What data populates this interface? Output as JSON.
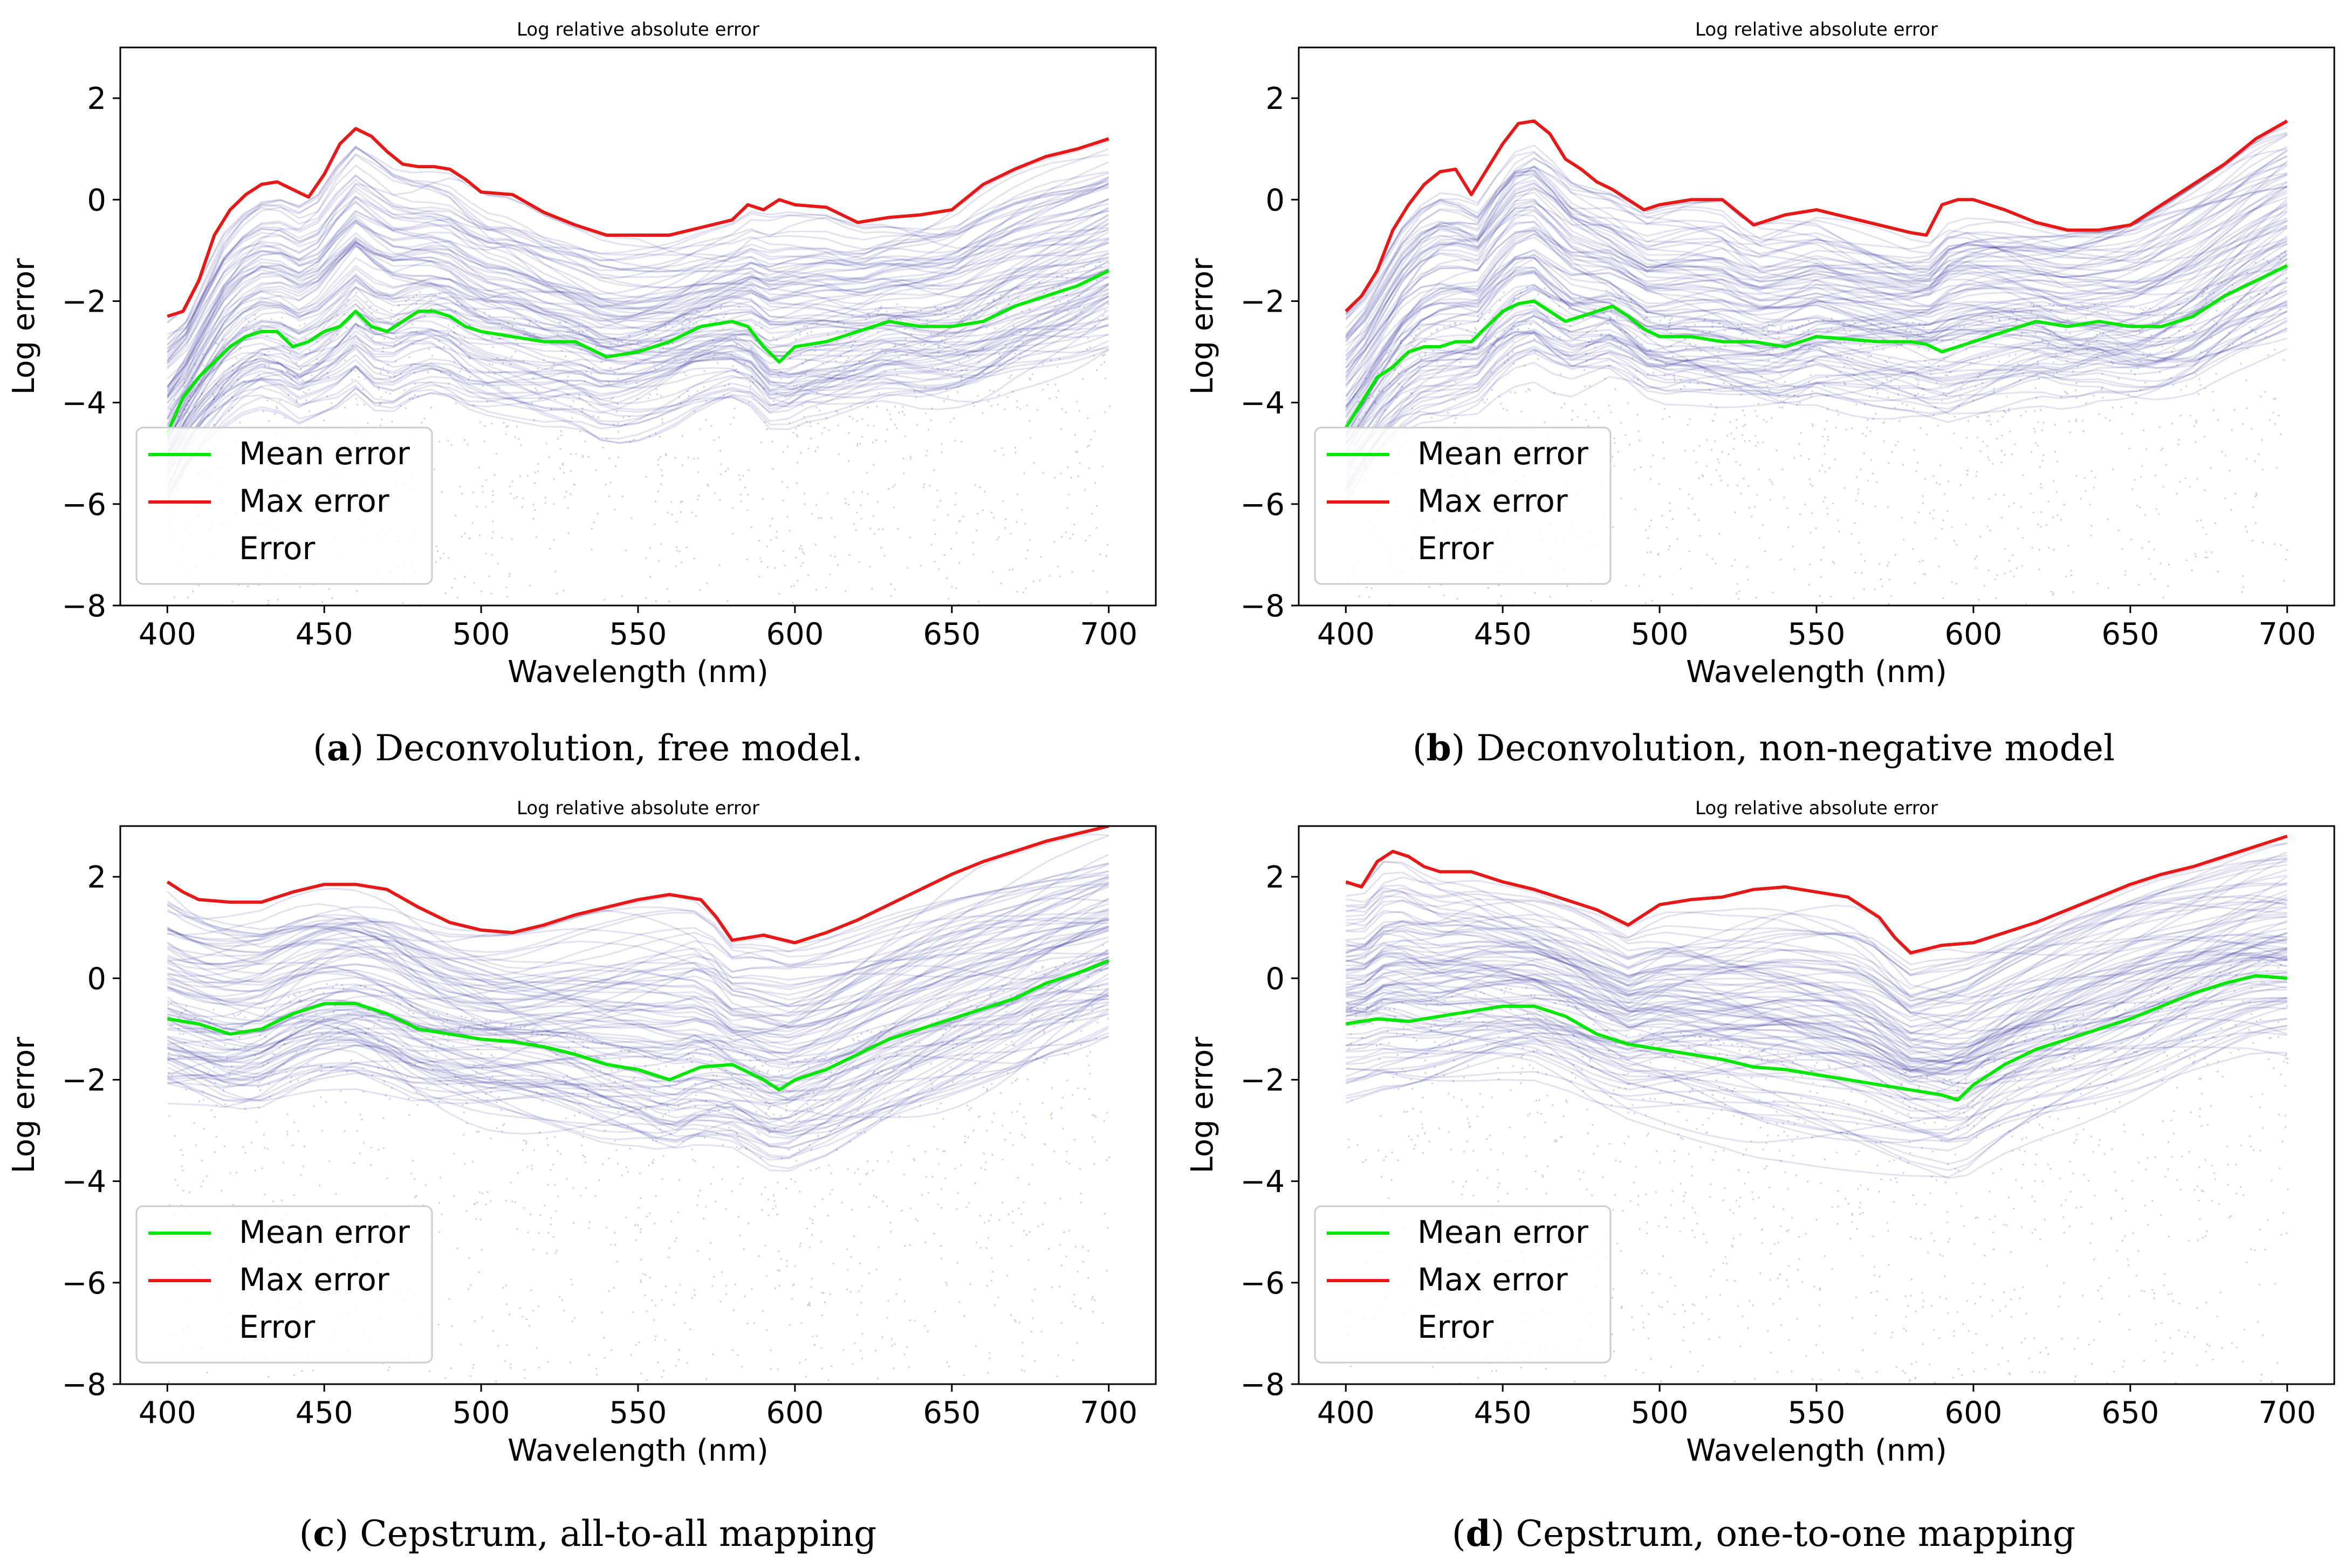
{
  "panels": [
    {
      "caption_letter": "a",
      "caption_text": "Deconvolution, free model.",
      "chart_data": {
        "type": "line",
        "title": "Log relative absolute error",
        "xlabel": "Wavelength (nm)",
        "ylabel": "Log error",
        "xlim": [
          385,
          715
        ],
        "ylim": [
          -8,
          3
        ],
        "xticks": [
          400,
          450,
          500,
          550,
          600,
          650,
          700
        ],
        "yticks": [
          -8,
          -6,
          -4,
          -2,
          0,
          2
        ],
        "legend_position": "lower-left",
        "series": [
          {
            "name": "Mean error",
            "color": "#00e600",
            "x": [
              400,
              405,
              410,
              415,
              420,
              425,
              430,
              435,
              440,
              445,
              450,
              455,
              460,
              465,
              470,
              475,
              480,
              485,
              490,
              495,
              500,
              510,
              520,
              530,
              540,
              550,
              560,
              570,
              580,
              585,
              590,
              595,
              600,
              610,
              620,
              630,
              640,
              650,
              660,
              670,
              680,
              690,
              700
            ],
            "y": [
              -4.6,
              -3.9,
              -3.5,
              -3.2,
              -2.9,
              -2.7,
              -2.6,
              -2.6,
              -2.9,
              -2.8,
              -2.6,
              -2.5,
              -2.2,
              -2.5,
              -2.6,
              -2.4,
              -2.2,
              -2.2,
              -2.3,
              -2.5,
              -2.6,
              -2.7,
              -2.8,
              -2.8,
              -3.1,
              -3.0,
              -2.8,
              -2.5,
              -2.4,
              -2.5,
              -2.9,
              -3.2,
              -2.9,
              -2.8,
              -2.6,
              -2.4,
              -2.5,
              -2.5,
              -2.4,
              -2.1,
              -1.9,
              -1.7,
              -1.4
            ]
          },
          {
            "name": "Max error",
            "color": "#e61919",
            "x": [
              400,
              405,
              410,
              415,
              420,
              425,
              430,
              435,
              440,
              445,
              450,
              455,
              460,
              465,
              470,
              475,
              480,
              485,
              490,
              495,
              500,
              510,
              520,
              530,
              540,
              550,
              560,
              570,
              580,
              585,
              590,
              595,
              600,
              610,
              620,
              630,
              640,
              650,
              660,
              670,
              680,
              690,
              700
            ],
            "y": [
              -2.3,
              -2.2,
              -1.6,
              -0.7,
              -0.2,
              0.1,
              0.3,
              0.35,
              0.2,
              0.05,
              0.5,
              1.1,
              1.4,
              1.25,
              0.95,
              0.7,
              0.65,
              0.65,
              0.6,
              0.4,
              0.15,
              0.1,
              -0.25,
              -0.5,
              -0.7,
              -0.7,
              -0.7,
              -0.55,
              -0.4,
              -0.1,
              -0.2,
              0.0,
              -0.1,
              -0.15,
              -0.45,
              -0.35,
              -0.3,
              -0.2,
              0.3,
              0.6,
              0.85,
              1.0,
              1.2
            ]
          },
          {
            "name": "Error",
            "color": "#1a1a8c",
            "style": "faint-dots"
          }
        ]
      }
    },
    {
      "caption_letter": "b",
      "caption_text": "Deconvolution, non-negative model",
      "chart_data": {
        "type": "line",
        "title": "Log relative absolute error",
        "xlabel": "Wavelength (nm)",
        "ylabel": "Log error",
        "xlim": [
          385,
          715
        ],
        "ylim": [
          -8,
          3
        ],
        "xticks": [
          400,
          450,
          500,
          550,
          600,
          650,
          700
        ],
        "yticks": [
          -8,
          -6,
          -4,
          -2,
          0,
          2
        ],
        "legend_position": "lower-left",
        "series": [
          {
            "name": "Mean error",
            "color": "#00e600",
            "x": [
              400,
              405,
              410,
              415,
              420,
              425,
              430,
              435,
              440,
              445,
              450,
              455,
              460,
              465,
              470,
              475,
              480,
              485,
              490,
              495,
              500,
              510,
              520,
              530,
              540,
              550,
              560,
              570,
              580,
              585,
              590,
              595,
              600,
              610,
              620,
              630,
              640,
              650,
              660,
              670,
              680,
              690,
              700
            ],
            "y": [
              -4.5,
              -4.0,
              -3.5,
              -3.3,
              -3.0,
              -2.9,
              -2.9,
              -2.8,
              -2.8,
              -2.5,
              -2.2,
              -2.05,
              -2.0,
              -2.2,
              -2.4,
              -2.3,
              -2.2,
              -2.1,
              -2.3,
              -2.55,
              -2.7,
              -2.7,
              -2.8,
              -2.8,
              -2.9,
              -2.7,
              -2.75,
              -2.8,
              -2.8,
              -2.85,
              -3.0,
              -2.9,
              -2.8,
              -2.6,
              -2.4,
              -2.5,
              -2.4,
              -2.5,
              -2.5,
              -2.3,
              -1.9,
              -1.6,
              -1.3
            ]
          },
          {
            "name": "Max error",
            "color": "#e61919",
            "x": [
              400,
              405,
              410,
              415,
              420,
              425,
              430,
              435,
              440,
              445,
              450,
              455,
              460,
              465,
              470,
              475,
              480,
              485,
              490,
              495,
              500,
              510,
              520,
              530,
              540,
              550,
              560,
              570,
              580,
              585,
              590,
              595,
              600,
              610,
              620,
              630,
              640,
              650,
              660,
              670,
              680,
              690,
              700
            ],
            "y": [
              -2.2,
              -1.9,
              -1.4,
              -0.6,
              -0.1,
              0.3,
              0.55,
              0.6,
              0.1,
              0.6,
              1.1,
              1.5,
              1.55,
              1.3,
              0.8,
              0.6,
              0.35,
              0.2,
              0.0,
              -0.2,
              -0.1,
              0.0,
              0.0,
              -0.5,
              -0.3,
              -0.2,
              -0.35,
              -0.5,
              -0.65,
              -0.7,
              -0.1,
              0.0,
              0.0,
              -0.2,
              -0.45,
              -0.6,
              -0.6,
              -0.5,
              -0.1,
              0.3,
              0.7,
              1.2,
              1.55
            ]
          },
          {
            "name": "Error",
            "color": "#1a1a8c",
            "style": "faint-dots"
          }
        ]
      }
    },
    {
      "caption_letter": "c",
      "caption_text": "Cepstrum, all-to-all mapping",
      "chart_data": {
        "type": "line",
        "title": "Log relative absolute error",
        "xlabel": "Wavelength (nm)",
        "ylabel": "Log error",
        "xlim": [
          385,
          715
        ],
        "ylim": [
          -8,
          3
        ],
        "xticks": [
          400,
          450,
          500,
          550,
          600,
          650,
          700
        ],
        "yticks": [
          -8,
          -6,
          -4,
          -2,
          0,
          2
        ],
        "legend_position": "lower-left",
        "series": [
          {
            "name": "Mean error",
            "color": "#00e600",
            "x": [
              400,
              410,
              420,
              430,
              440,
              450,
              460,
              470,
              480,
              490,
              500,
              510,
              520,
              530,
              540,
              550,
              560,
              570,
              580,
              590,
              595,
              600,
              610,
              620,
              630,
              640,
              650,
              660,
              670,
              680,
              690,
              700
            ],
            "y": [
              -0.8,
              -0.9,
              -1.1,
              -1.0,
              -0.7,
              -0.5,
              -0.5,
              -0.7,
              -1.0,
              -1.1,
              -1.2,
              -1.25,
              -1.35,
              -1.5,
              -1.7,
              -1.8,
              -2.0,
              -1.75,
              -1.7,
              -2.0,
              -2.2,
              -2.0,
              -1.8,
              -1.5,
              -1.2,
              -1.0,
              -0.8,
              -0.6,
              -0.4,
              -0.1,
              0.1,
              0.35
            ]
          },
          {
            "name": "Max error",
            "color": "#e61919",
            "x": [
              400,
              405,
              410,
              420,
              430,
              440,
              450,
              460,
              470,
              480,
              490,
              500,
              510,
              520,
              530,
              540,
              550,
              560,
              570,
              575,
              580,
              590,
              600,
              610,
              620,
              630,
              640,
              650,
              660,
              670,
              680,
              690,
              700
            ],
            "y": [
              1.9,
              1.7,
              1.55,
              1.5,
              1.5,
              1.7,
              1.85,
              1.85,
              1.75,
              1.4,
              1.1,
              0.95,
              0.9,
              1.05,
              1.25,
              1.4,
              1.55,
              1.65,
              1.55,
              1.2,
              0.75,
              0.85,
              0.7,
              0.9,
              1.15,
              1.45,
              1.75,
              2.05,
              2.3,
              2.5,
              2.7,
              2.85,
              3.0
            ]
          },
          {
            "name": "Error",
            "color": "#1a1a8c",
            "style": "faint-dots"
          }
        ]
      }
    },
    {
      "caption_letter": "d",
      "caption_text": "Cepstrum, one-to-one mapping",
      "chart_data": {
        "type": "line",
        "title": "Log relative absolute error",
        "xlabel": "Wavelength (nm)",
        "ylabel": "Log error",
        "xlim": [
          385,
          715
        ],
        "ylim": [
          -8,
          3
        ],
        "xticks": [
          400,
          450,
          500,
          550,
          600,
          650,
          700
        ],
        "yticks": [
          -8,
          -6,
          -4,
          -2,
          0,
          2
        ],
        "legend_position": "lower-left",
        "series": [
          {
            "name": "Mean error",
            "color": "#00e600",
            "x": [
              400,
              410,
              420,
              430,
              440,
              450,
              460,
              470,
              480,
              490,
              500,
              510,
              520,
              530,
              540,
              550,
              560,
              570,
              580,
              590,
              595,
              600,
              610,
              620,
              630,
              640,
              650,
              660,
              670,
              680,
              690,
              700
            ],
            "y": [
              -0.9,
              -0.8,
              -0.85,
              -0.75,
              -0.65,
              -0.55,
              -0.55,
              -0.75,
              -1.1,
              -1.3,
              -1.4,
              -1.5,
              -1.6,
              -1.75,
              -1.8,
              -1.9,
              -2.0,
              -2.1,
              -2.2,
              -2.3,
              -2.4,
              -2.1,
              -1.7,
              -1.4,
              -1.2,
              -1.0,
              -0.8,
              -0.55,
              -0.3,
              -0.1,
              0.05,
              0.0
            ]
          },
          {
            "name": "Max error",
            "color": "#e61919",
            "x": [
              400,
              405,
              410,
              415,
              420,
              425,
              430,
              440,
              450,
              460,
              470,
              480,
              490,
              500,
              510,
              520,
              530,
              540,
              550,
              560,
              570,
              575,
              580,
              590,
              600,
              610,
              620,
              630,
              640,
              650,
              660,
              670,
              680,
              690,
              700
            ],
            "y": [
              1.9,
              1.8,
              2.3,
              2.5,
              2.4,
              2.2,
              2.1,
              2.1,
              1.9,
              1.75,
              1.55,
              1.35,
              1.05,
              1.45,
              1.55,
              1.6,
              1.75,
              1.8,
              1.7,
              1.6,
              1.2,
              0.8,
              0.5,
              0.65,
              0.7,
              0.9,
              1.1,
              1.35,
              1.6,
              1.85,
              2.05,
              2.2,
              2.4,
              2.6,
              2.8
            ]
          },
          {
            "name": "Error",
            "color": "#1a1a8c",
            "style": "faint-dots"
          }
        ]
      }
    }
  ]
}
